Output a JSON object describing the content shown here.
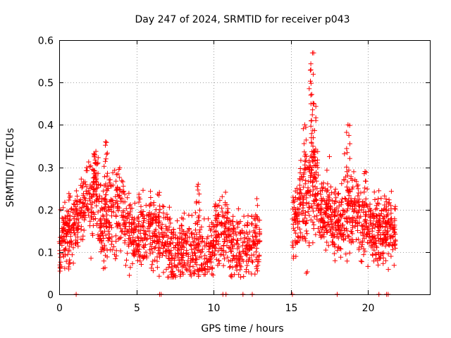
{
  "chart_data": {
    "type": "scatter",
    "title": "Day 247 of 2024, SRMTID for receiver p043",
    "xlabel": "GPS time / hours",
    "ylabel": "SRMTID / TECUs",
    "xlim": [
      0,
      24
    ],
    "ylim": [
      0,
      0.6
    ],
    "xticks": [
      0,
      5,
      10,
      15,
      20
    ],
    "xtick_labels": [
      "0",
      "5",
      "10",
      "15",
      "20"
    ],
    "yticks": [
      0,
      0.1,
      0.2,
      0.3,
      0.4,
      0.5,
      0.6
    ],
    "ytick_labels": [
      "0",
      "0.1",
      "0.2",
      "0.3",
      "0.4",
      "0.5",
      "0.6"
    ],
    "grid": true,
    "marker": "+",
    "color": "#ff0000",
    "series": [
      {
        "name": "p043",
        "segments": [
          {
            "x_start": 0.0,
            "x_end": 13.0,
            "points": 1400
          },
          {
            "x_start": 15.1,
            "x_end": 21.8,
            "points": 800
          }
        ],
        "peaks": [
          {
            "x": 3.0,
            "y": 0.36
          },
          {
            "x": 2.3,
            "y": 0.33
          },
          {
            "x": 16.4,
            "y": 0.57
          },
          {
            "x": 16.3,
            "y": 0.53
          },
          {
            "x": 16.5,
            "y": 0.45
          },
          {
            "x": 15.9,
            "y": 0.4
          },
          {
            "x": 18.7,
            "y": 0.4
          },
          {
            "x": 19.8,
            "y": 0.29
          },
          {
            "x": 9.0,
            "y": 0.26
          }
        ],
        "zero_points_x": [
          1.1,
          6.5,
          6.6,
          10.6,
          10.8,
          11.9,
          12.5,
          15.1,
          18.0,
          20.7,
          21.2,
          21.3
        ]
      }
    ]
  }
}
